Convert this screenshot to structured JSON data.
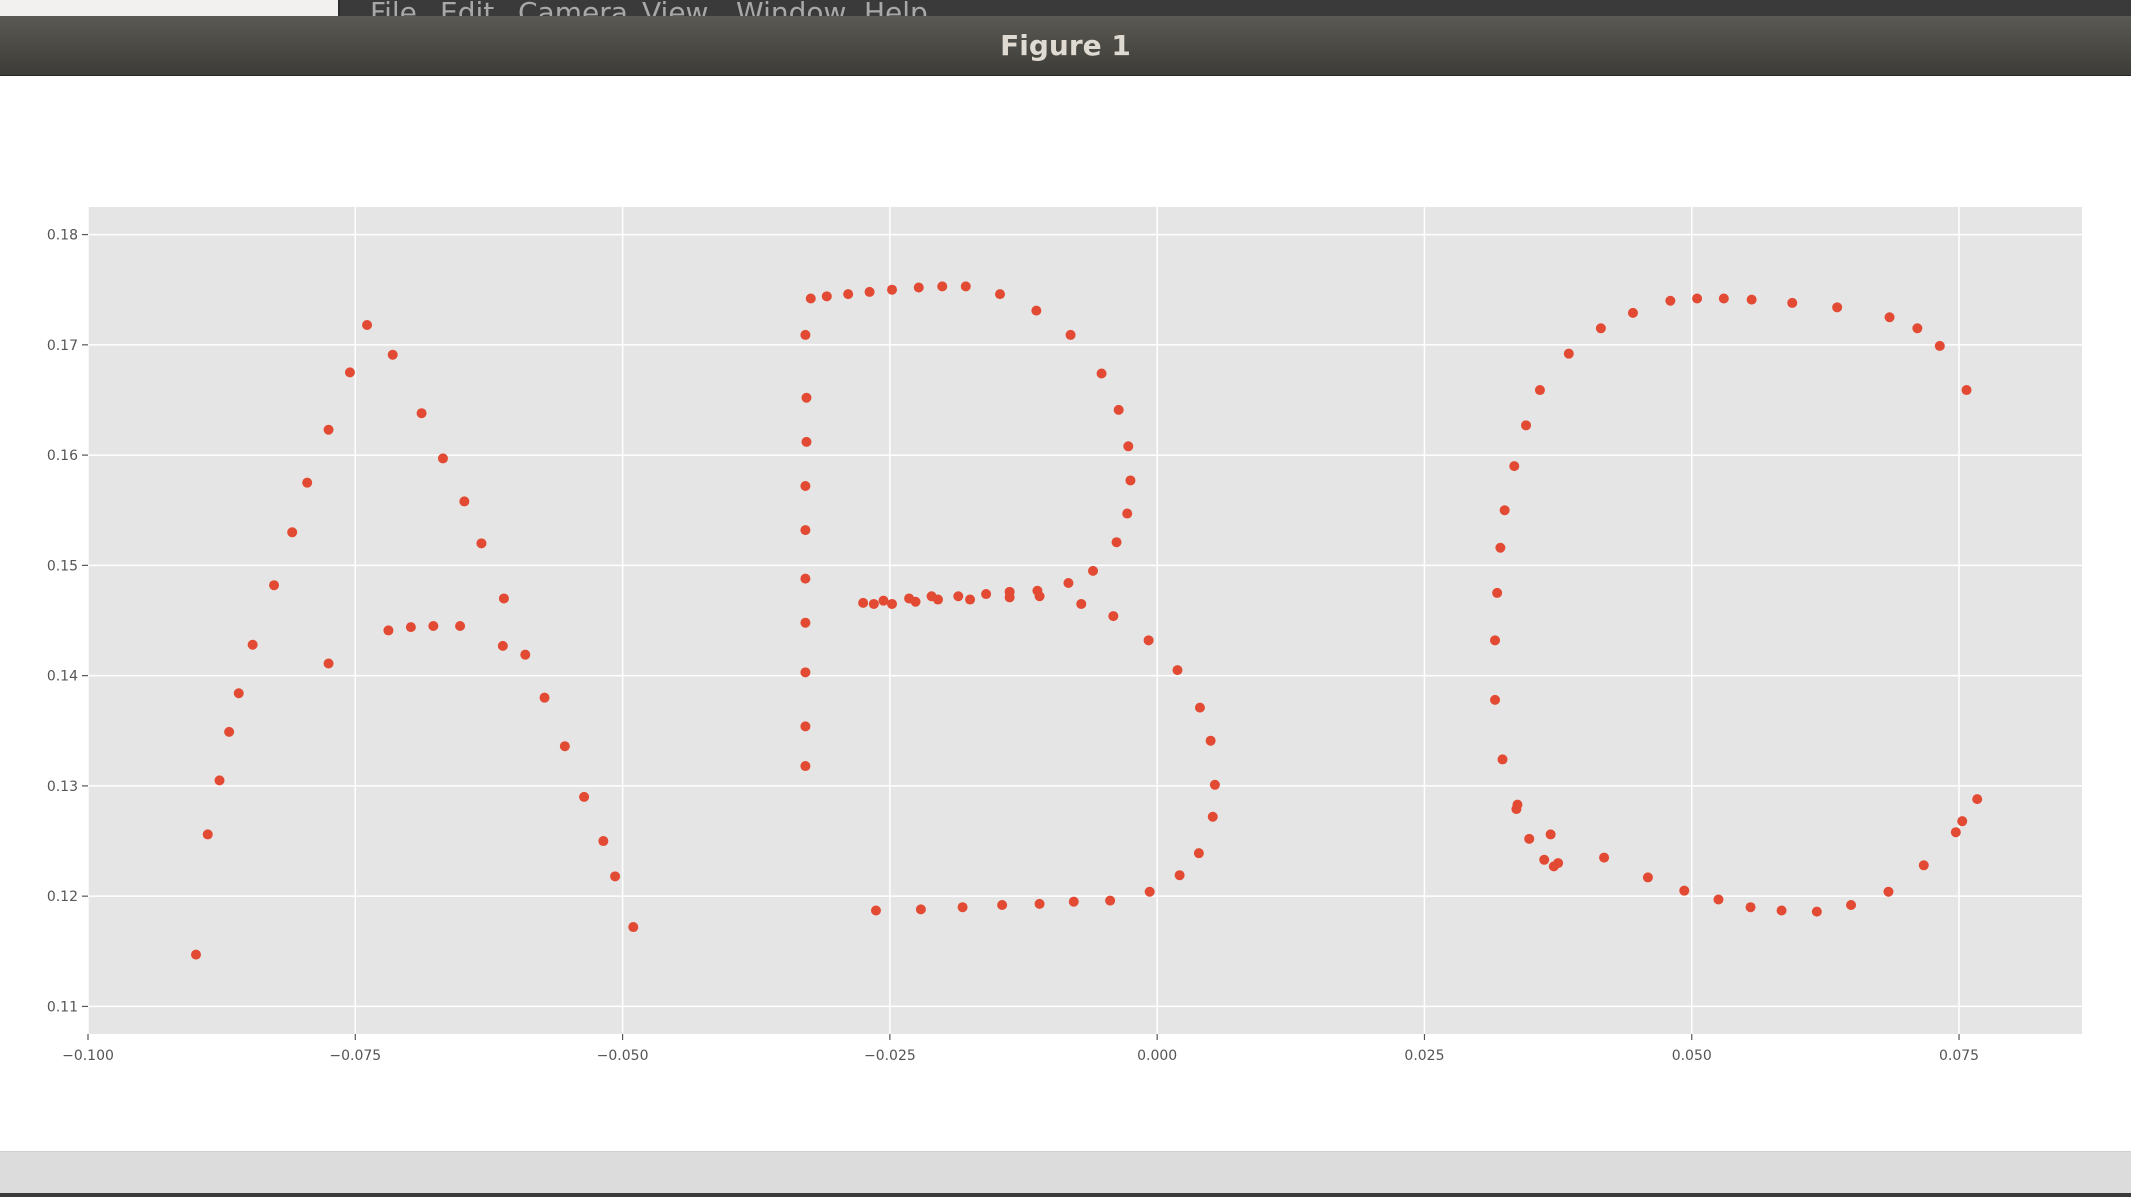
{
  "window": {
    "title": "Figure 1",
    "menu": [
      "File",
      "Edit",
      "Camera",
      "View",
      "Window",
      "Help"
    ]
  },
  "colors": {
    "title_bar": "#4b4a45",
    "axes_background": "#e5e5e5",
    "grid": "#ffffff",
    "marker": "#e24a33"
  },
  "chart_data": {
    "type": "scatter",
    "title": "",
    "xlabel": "",
    "ylabel": "",
    "xlim": [
      -0.1,
      0.0865
    ],
    "ylim": [
      0.1075,
      0.1825
    ],
    "grid": true,
    "x_ticks": [
      -0.1,
      -0.075,
      -0.05,
      -0.025,
      0.0,
      0.025,
      0.05,
      0.075
    ],
    "x_tick_labels": [
      "−0.100",
      "−0.075",
      "−0.050",
      "−0.025",
      "0.000",
      "0.025",
      "0.050",
      "0.075"
    ],
    "y_ticks": [
      0.11,
      0.12,
      0.13,
      0.14,
      0.15,
      0.16,
      0.17,
      0.18
    ],
    "y_tick_labels": [
      "0.11",
      "0.12",
      "0.13",
      "0.14",
      "0.15",
      "0.16",
      "0.17",
      "0.18"
    ],
    "points": [
      [
        -0.0899,
        0.1147
      ],
      [
        -0.0888,
        0.1256
      ],
      [
        -0.0877,
        0.1305
      ],
      [
        -0.0868,
        0.1349
      ],
      [
        -0.0859,
        0.1384
      ],
      [
        -0.0846,
        0.1428
      ],
      [
        -0.0826,
        0.1482
      ],
      [
        -0.0809,
        0.153
      ],
      [
        -0.0795,
        0.1575
      ],
      [
        -0.0775,
        0.1623
      ],
      [
        -0.0775,
        0.1411
      ],
      [
        -0.0755,
        0.1675
      ],
      [
        -0.0739,
        0.1718
      ],
      [
        -0.0715,
        0.1691
      ],
      [
        -0.0719,
        0.1441
      ],
      [
        -0.0698,
        0.1444
      ],
      [
        -0.0688,
        0.1638
      ],
      [
        -0.0677,
        0.1445
      ],
      [
        -0.0668,
        0.1597
      ],
      [
        -0.0652,
        0.1445
      ],
      [
        -0.0648,
        0.1558
      ],
      [
        -0.0632,
        0.152
      ],
      [
        -0.0611,
        0.147
      ],
      [
        -0.0612,
        0.1427
      ],
      [
        -0.0591,
        0.1419
      ],
      [
        -0.0573,
        0.138
      ],
      [
        -0.0554,
        0.1336
      ],
      [
        -0.0536,
        0.129
      ],
      [
        -0.0518,
        0.125
      ],
      [
        -0.0507,
        0.1218
      ],
      [
        -0.049,
        0.1172
      ],
      [
        -0.0329,
        0.1318
      ],
      [
        -0.0329,
        0.1354
      ],
      [
        -0.0329,
        0.1403
      ],
      [
        -0.0329,
        0.1448
      ],
      [
        -0.0329,
        0.1488
      ],
      [
        -0.0329,
        0.1532
      ],
      [
        -0.0329,
        0.1572
      ],
      [
        -0.0328,
        0.1612
      ],
      [
        -0.0328,
        0.1652
      ],
      [
        -0.0329,
        0.1709
      ],
      [
        -0.0324,
        0.1742
      ],
      [
        -0.0309,
        0.1744
      ],
      [
        -0.0289,
        0.1746
      ],
      [
        -0.0269,
        0.1748
      ],
      [
        -0.0248,
        0.175
      ],
      [
        -0.0223,
        0.1752
      ],
      [
        -0.0201,
        0.1753
      ],
      [
        -0.0179,
        0.1753
      ],
      [
        -0.0147,
        0.1746
      ],
      [
        -0.0113,
        0.1731
      ],
      [
        -0.0081,
        0.1709
      ],
      [
        -0.0052,
        0.1674
      ],
      [
        -0.0036,
        0.1641
      ],
      [
        -0.0027,
        0.1608
      ],
      [
        -0.0025,
        0.1577
      ],
      [
        -0.0028,
        0.1547
      ],
      [
        -0.0038,
        0.1521
      ],
      [
        -0.006,
        0.1495
      ],
      [
        -0.0071,
        0.1465
      ],
      [
        -0.0083,
        0.1484
      ],
      [
        -0.0112,
        0.1477
      ],
      [
        -0.011,
        0.1472
      ],
      [
        -0.0138,
        0.1476
      ],
      [
        -0.0138,
        0.1471
      ],
      [
        -0.016,
        0.1474
      ],
      [
        -0.0175,
        0.1469
      ],
      [
        -0.0186,
        0.1472
      ],
      [
        -0.0205,
        0.1469
      ],
      [
        -0.0211,
        0.1472
      ],
      [
        -0.0226,
        0.1467
      ],
      [
        -0.0232,
        0.147
      ],
      [
        -0.0248,
        0.1465
      ],
      [
        -0.0256,
        0.1468
      ],
      [
        -0.0265,
        0.1465
      ],
      [
        -0.0275,
        0.1466
      ],
      [
        -0.0263,
        0.1187
      ],
      [
        -0.0221,
        0.1188
      ],
      [
        -0.0182,
        0.119
      ],
      [
        -0.0145,
        0.1192
      ],
      [
        -0.011,
        0.1193
      ],
      [
        -0.0078,
        0.1195
      ],
      [
        -0.0044,
        0.1196
      ],
      [
        -0.0007,
        0.1204
      ],
      [
        0.0021,
        0.1219
      ],
      [
        0.0039,
        0.1239
      ],
      [
        0.0052,
        0.1272
      ],
      [
        0.0054,
        0.1301
      ],
      [
        0.005,
        0.1341
      ],
      [
        0.004,
        0.1371
      ],
      [
        0.0019,
        0.1405
      ],
      [
        -0.0008,
        0.1432
      ],
      [
        -0.0041,
        0.1454
      ],
      [
        0.0316,
        0.1378
      ],
      [
        0.0316,
        0.1432
      ],
      [
        0.0318,
        0.1475
      ],
      [
        0.0321,
        0.1516
      ],
      [
        0.0325,
        0.155
      ],
      [
        0.0334,
        0.159
      ],
      [
        0.0345,
        0.1627
      ],
      [
        0.0358,
        0.1659
      ],
      [
        0.0385,
        0.1692
      ],
      [
        0.0415,
        0.1715
      ],
      [
        0.0445,
        0.1729
      ],
      [
        0.048,
        0.174
      ],
      [
        0.0505,
        0.1742
      ],
      [
        0.053,
        0.1742
      ],
      [
        0.0556,
        0.1741
      ],
      [
        0.0594,
        0.1738
      ],
      [
        0.0636,
        0.1734
      ],
      [
        0.0685,
        0.1725
      ],
      [
        0.0711,
        0.1715
      ],
      [
        0.0732,
        0.1699
      ],
      [
        0.0757,
        0.1659
      ],
      [
        0.0323,
        0.1324
      ],
      [
        0.0337,
        0.1283
      ],
      [
        0.0336,
        0.1279
      ],
      [
        0.0348,
        0.1252
      ],
      [
        0.0362,
        0.1233
      ],
      [
        0.0368,
        0.1256
      ],
      [
        0.0371,
        0.1227
      ],
      [
        0.0375,
        0.123
      ],
      [
        0.0418,
        0.1235
      ],
      [
        0.0459,
        0.1217
      ],
      [
        0.0493,
        0.1205
      ],
      [
        0.0525,
        0.1197
      ],
      [
        0.0555,
        0.119
      ],
      [
        0.0584,
        0.1187
      ],
      [
        0.0617,
        0.1186
      ],
      [
        0.0649,
        0.1192
      ],
      [
        0.0684,
        0.1204
      ],
      [
        0.0717,
        0.1228
      ],
      [
        0.0747,
        0.1258
      ],
      [
        0.0753,
        0.1268
      ],
      [
        0.0767,
        0.1288
      ]
    ]
  }
}
